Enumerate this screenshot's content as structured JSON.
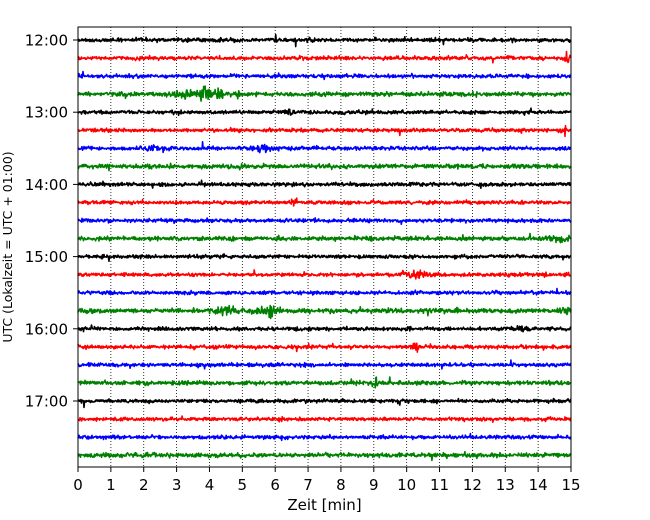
{
  "chart_data": {
    "type": "line",
    "title": "",
    "xlabel": "Zeit  [min]",
    "ylabel": "UTC (Lokalzeit = UTC + 01:00)",
    "xlim": [
      0,
      15
    ],
    "x_ticks": [
      "0",
      "1",
      "2",
      "3",
      "4",
      "5",
      "6",
      "7",
      "8",
      "9",
      "10",
      "11",
      "12",
      "13",
      "14",
      "15"
    ],
    "y_ticks": [
      "12:00",
      "13:00",
      "14:00",
      "15:00",
      "16:00",
      "17:00"
    ],
    "grid": "vertical dotted lines at each minute",
    "trace_interval_min": 15,
    "trace_color_cycle": [
      "#000000",
      "#ff0000",
      "#0000ff",
      "#008000"
    ],
    "series": [
      {
        "start": "12:00",
        "color": "#000000"
      },
      {
        "start": "12:15",
        "color": "#ff0000"
      },
      {
        "start": "12:30",
        "color": "#0000ff"
      },
      {
        "start": "12:45",
        "color": "#008000"
      },
      {
        "start": "13:00",
        "color": "#000000"
      },
      {
        "start": "13:15",
        "color": "#ff0000"
      },
      {
        "start": "13:30",
        "color": "#0000ff"
      },
      {
        "start": "13:45",
        "color": "#008000"
      },
      {
        "start": "14:00",
        "color": "#000000"
      },
      {
        "start": "14:15",
        "color": "#ff0000"
      },
      {
        "start": "14:30",
        "color": "#0000ff"
      },
      {
        "start": "14:45",
        "color": "#008000"
      },
      {
        "start": "15:00",
        "color": "#000000"
      },
      {
        "start": "15:15",
        "color": "#ff0000"
      },
      {
        "start": "15:30",
        "color": "#0000ff"
      },
      {
        "start": "15:45",
        "color": "#008000"
      },
      {
        "start": "16:00",
        "color": "#000000"
      },
      {
        "start": "16:15",
        "color": "#ff0000"
      },
      {
        "start": "16:30",
        "color": "#0000ff"
      },
      {
        "start": "16:45",
        "color": "#008000"
      },
      {
        "start": "17:00",
        "color": "#000000"
      },
      {
        "start": "17:15",
        "color": "#ff0000"
      },
      {
        "start": "17:30",
        "color": "#0000ff"
      },
      {
        "start": "17:45",
        "color": "#008000"
      }
    ]
  }
}
